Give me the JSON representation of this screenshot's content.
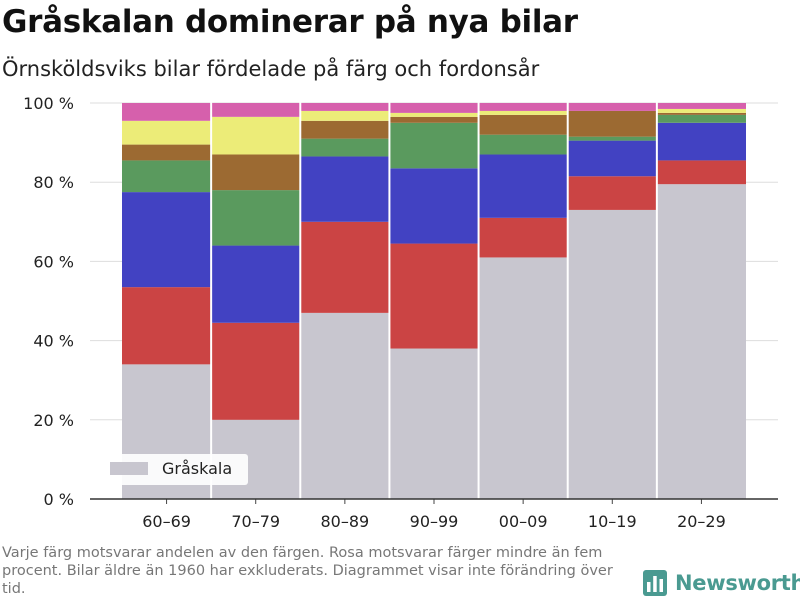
{
  "header": {
    "title": "Gråskalan dominerar på nya bilar",
    "subtitle": "Örnsköldsviks bilar fördelade på färg och fordonsår"
  },
  "footer": {
    "note": "Varje färg motsvarar andelen av den färgen. Rosa motsvarar färger mindre än fem procent. Bilar äldre än 1960 har exkluderats. Diagrammet visar inte förändring över tid.",
    "brand": "Newsworthy",
    "brand_icon": "bar-chart-logo-icon",
    "brand_color": "#4a9a91"
  },
  "chart_data": {
    "type": "bar",
    "stacked": true,
    "categories": [
      "60–69",
      "70–79",
      "80–89",
      "90–99",
      "00–09",
      "10–19",
      "20–29"
    ],
    "series": [
      {
        "name": "Gråskala",
        "color": "#c8c6cf",
        "values": [
          34,
          20,
          47,
          38,
          61,
          73,
          79.5
        ]
      },
      {
        "color": "#cb4444",
        "values": [
          19.5,
          24.5,
          23,
          26.5,
          10,
          8.5,
          6
        ]
      },
      {
        "color": "#4242c2",
        "values": [
          24,
          19.5,
          16.5,
          19,
          16,
          9,
          9.5
        ]
      },
      {
        "color": "#5a9a5e",
        "values": [
          8,
          14,
          4.5,
          11.5,
          5,
          1,
          2
        ]
      },
      {
        "color": "#9c6a32",
        "values": [
          4,
          9,
          4.5,
          1.5,
          5,
          6.5,
          0.5
        ]
      },
      {
        "color": "#ecec78",
        "values": [
          6,
          9.5,
          2.5,
          1,
          1,
          0,
          1
        ]
      },
      {
        "color": "#d660ac",
        "values": [
          4.5,
          3.5,
          2,
          2.5,
          2,
          2,
          1.5
        ]
      }
    ],
    "yticks": [
      "0 %",
      "20 %",
      "40 %",
      "60 %",
      "80 %",
      "100 %"
    ],
    "ylim": [
      0,
      100
    ],
    "xlabel": "",
    "ylabel": "",
    "grid": true,
    "legend": {
      "placement": "bottom-left",
      "entries": [
        "Gråskala"
      ]
    }
  }
}
